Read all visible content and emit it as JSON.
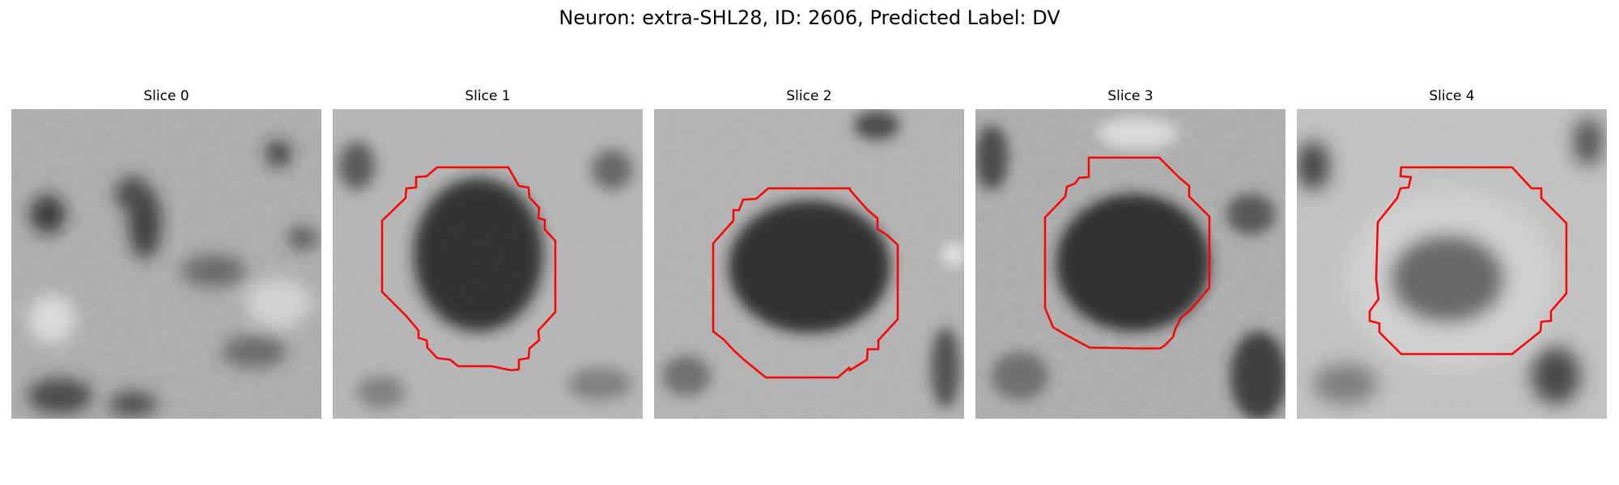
{
  "figure": {
    "title": "Neuron: extra-SHL28, ID: 2606, Predicted Label: DV",
    "contour_color": "#ff0000"
  },
  "panels": [
    {
      "title": "Slice 0",
      "has_contour": false
    },
    {
      "title": "Slice 1",
      "has_contour": true
    },
    {
      "title": "Slice 2",
      "has_contour": true
    },
    {
      "title": "Slice 3",
      "has_contour": true
    },
    {
      "title": "Slice 4",
      "has_contour": true
    }
  ]
}
